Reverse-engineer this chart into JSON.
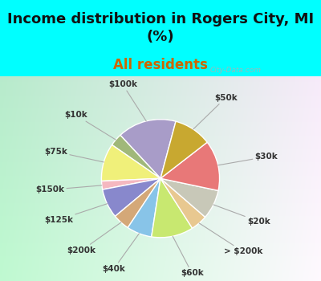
{
  "title": "Income distribution in Rogers City, MI\n(%)",
  "subtitle": "All residents",
  "title_fontsize": 13,
  "subtitle_fontsize": 12,
  "bg_color": "#00FFFF",
  "watermark": "City-Data.com",
  "labels": [
    "$100k",
    "$10k",
    "$75k",
    "$150k",
    "$125k",
    "$200k",
    "$40k",
    "$60k",
    "> $200k",
    "$20k",
    "$30k",
    "$50k"
  ],
  "values": [
    14,
    3,
    9,
    2,
    7,
    4,
    6,
    10,
    4,
    7,
    12,
    9
  ],
  "colors": [
    "#a89cc8",
    "#a0b87a",
    "#f0f07a",
    "#f5b8c0",
    "#8888cc",
    "#d4a878",
    "#88c4e8",
    "#c8e870",
    "#e8c890",
    "#c8c8b8",
    "#e87878",
    "#c8a830"
  ],
  "label_fontsize": 7.5,
  "startangle": 75
}
